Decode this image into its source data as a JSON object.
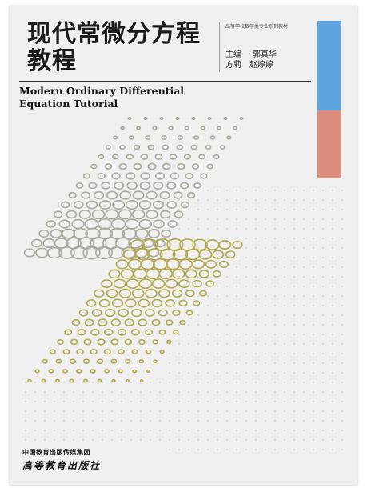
{
  "cover": {
    "title_cn_line1": "现代常微分方程",
    "title_cn_line2": "教程",
    "series": "高等学校数学类专业系列教材",
    "authors": [
      {
        "role": "主编",
        "names": "郭真华"
      },
      {
        "role": "",
        "names": "方莉　赵婷婷"
      }
    ],
    "title_en_line1": "Modern Ordinary Differential",
    "title_en_line2": "Equation Tutorial",
    "publisher_group": "中国教育出版传媒集团",
    "publisher_name": "高等教育出版社"
  },
  "colors": {
    "background": "#f0f0f0",
    "accent_blue": "#5ea4df",
    "accent_red": "#db8c7c",
    "circles_gray": "#a9a99c",
    "circles_olive": "#b3a84a",
    "dots_light": "#d8d8d0"
  }
}
